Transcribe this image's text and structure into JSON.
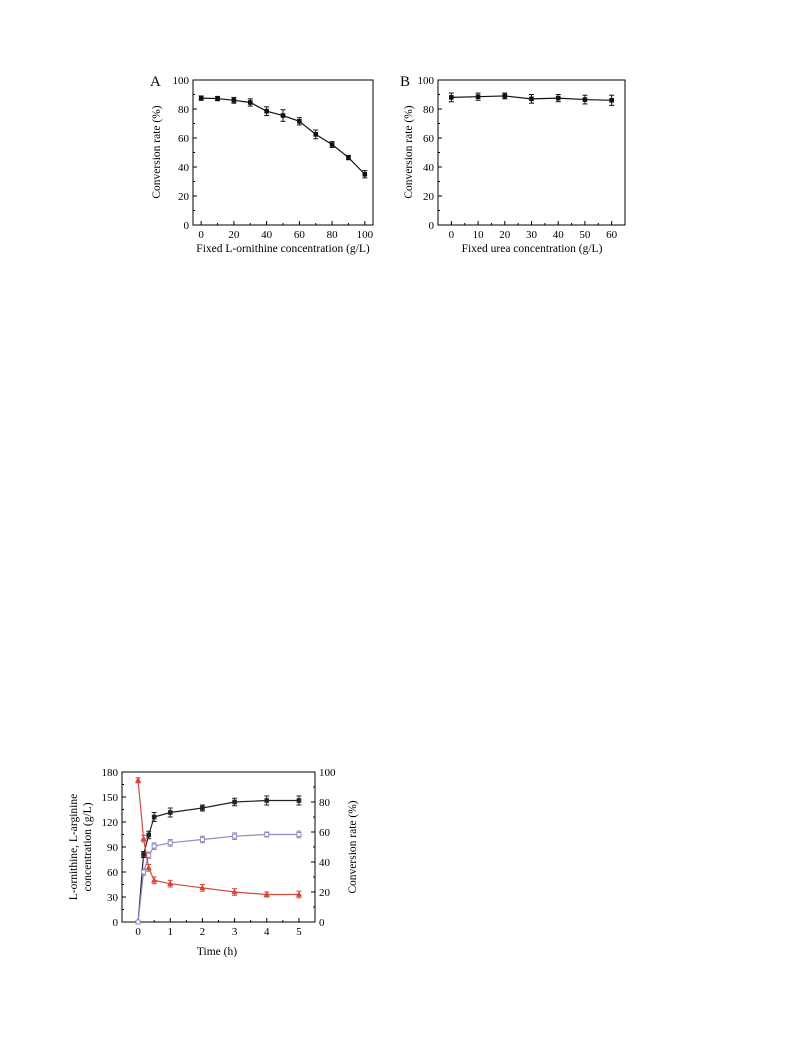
{
  "chart_data": [
    {
      "type": "line",
      "panel_label": "A",
      "xlabel": "Fixed L-ornithine concentration (g/L)",
      "ylabel": "Conversion rate (%)",
      "xlim": [
        -5,
        105
      ],
      "ylim": [
        0,
        100
      ],
      "xticks": [
        0,
        20,
        40,
        60,
        80,
        100
      ],
      "yticks": [
        0,
        20,
        40,
        60,
        80,
        100
      ],
      "grid": false,
      "series": [
        {
          "color": "#111111",
          "x": [
            0,
            10,
            20,
            30,
            40,
            50,
            60,
            70,
            80,
            90,
            100
          ],
          "y": [
            87.5,
            87.2,
            86.0,
            84.5,
            78.5,
            75.5,
            71.5,
            62.5,
            55.5,
            46.5,
            35.0
          ],
          "err": [
            1.5,
            1.5,
            2.0,
            2.5,
            3.0,
            4.0,
            2.5,
            3.0,
            2.0,
            1.5,
            2.5
          ]
        }
      ]
    },
    {
      "type": "line",
      "panel_label": "B",
      "xlabel": "Fixed urea concentration (g/L)",
      "ylabel": "Conversion rate (%)",
      "xlim": [
        -5,
        65
      ],
      "ylim": [
        0,
        100
      ],
      "xticks": [
        0,
        10,
        20,
        30,
        40,
        50,
        60
      ],
      "yticks": [
        0,
        20,
        40,
        60,
        80,
        100
      ],
      "grid": false,
      "series": [
        {
          "color": "#111111",
          "x": [
            0,
            10,
            20,
            30,
            40,
            50,
            60
          ],
          "y": [
            88.0,
            88.5,
            89.0,
            87.0,
            87.5,
            86.5,
            86.0
          ],
          "err": [
            3.0,
            2.5,
            2.0,
            3.0,
            2.5,
            3.0,
            3.5
          ]
        }
      ]
    },
    {
      "type": "line",
      "xlabel": "Time (h)",
      "ylabel_left": "L-ornithine, L-arginine concentration (g/L)",
      "ylabel_left_lines": [
        "L-ornithine, L-arginine",
        "concentration (g/L)"
      ],
      "ylabel_right": "Conversion rate (%)",
      "xlim": [
        -0.5,
        5.5
      ],
      "ylim_left": [
        0,
        180
      ],
      "ylim_right": [
        0,
        100
      ],
      "xticks": [
        0,
        1,
        2,
        3,
        4,
        5
      ],
      "yticks_left": [
        0,
        30,
        60,
        90,
        120,
        150,
        180
      ],
      "yticks_right": [
        0,
        20,
        40,
        60,
        80,
        100
      ],
      "grid": false,
      "series": [
        {
          "color": "#222222",
          "axis": "right",
          "marker": "square",
          "x": [
            0,
            0.17,
            0.33,
            0.5,
            1,
            2,
            3,
            4,
            5
          ],
          "y": [
            0,
            45,
            58,
            70,
            73,
            76,
            80,
            81,
            81
          ],
          "err": [
            0,
            2,
            2.5,
            3,
            3,
            2,
            2.5,
            3,
            3
          ]
        },
        {
          "color": "#8c8cc4",
          "axis": "left",
          "marker": "open-square",
          "x": [
            0,
            0.17,
            0.33,
            0.5,
            1,
            2,
            3,
            4,
            5
          ],
          "y": [
            0,
            60,
            80,
            91,
            95,
            99,
            103,
            105,
            105
          ],
          "err": [
            0,
            4,
            4,
            4,
            4,
            4,
            4,
            3,
            4
          ]
        },
        {
          "color": "#d8473c",
          "axis": "left",
          "marker": "triangle",
          "x": [
            0,
            0.17,
            0.33,
            0.5,
            1,
            2,
            3,
            4,
            5
          ],
          "y": [
            170,
            100,
            65,
            50,
            46,
            41,
            36,
            33,
            33
          ],
          "err": [
            3,
            4,
            4,
            4,
            4,
            4,
            4,
            3,
            4
          ]
        }
      ]
    }
  ]
}
